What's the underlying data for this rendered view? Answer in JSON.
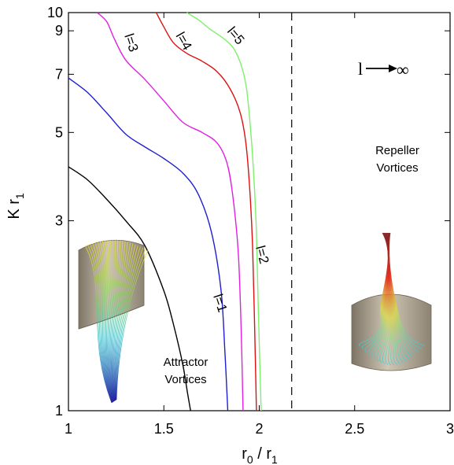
{
  "chart_data": {
    "type": "line",
    "xlabel": "r",
    "xlabel_sub_0": "0",
    "xlabel_slash": " / r",
    "xlabel_sub_1": "1",
    "ylabel": "K r",
    "ylabel_sub": "1",
    "xlim": [
      1,
      3
    ],
    "ylim": [
      1,
      10
    ],
    "y_scale": "log",
    "grid": false,
    "x_ticks": [
      1,
      1.5,
      2,
      2.5,
      3
    ],
    "x_tick_labels": [
      "1",
      "1.5",
      "2",
      "2.5",
      "3"
    ],
    "y_ticks": [
      1,
      3,
      5,
      7,
      9,
      10
    ],
    "y_tick_labels": [
      "1",
      "3",
      "5",
      "7",
      "9",
      "10"
    ],
    "series": [
      {
        "name": "l=1",
        "color": "#000000",
        "x": [
          1.0,
          1.1,
          1.2,
          1.3,
          1.4,
          1.5,
          1.55,
          1.6,
          1.625,
          1.64
        ],
        "y": [
          4.1,
          3.8,
          3.4,
          3.0,
          2.6,
          2.0,
          1.65,
          1.3,
          1.1,
          1.0
        ]
      },
      {
        "name": "l=2",
        "color": "#1f1fd0",
        "x": [
          1.0,
          1.1,
          1.2,
          1.3,
          1.4,
          1.5,
          1.6,
          1.68,
          1.75,
          1.8,
          1.82,
          1.835
        ],
        "y": [
          6.85,
          6.3,
          5.6,
          4.95,
          4.6,
          4.3,
          3.95,
          3.5,
          2.8,
          2.0,
          1.4,
          1.0
        ]
      },
      {
        "name": "l=3",
        "color": "#e020e0",
        "x": [
          1.15,
          1.2,
          1.24,
          1.3,
          1.4,
          1.5,
          1.6,
          1.7,
          1.78,
          1.83,
          1.86,
          1.89,
          1.905,
          1.915
        ],
        "y": [
          10.0,
          9.5,
          8.6,
          7.6,
          6.8,
          6.0,
          5.3,
          5.0,
          4.7,
          4.2,
          3.5,
          2.5,
          1.6,
          1.0
        ]
      },
      {
        "name": "l=4",
        "color": "#dd1111",
        "x": [
          1.46,
          1.5,
          1.55,
          1.62,
          1.7,
          1.78,
          1.85,
          1.9,
          1.93,
          1.95,
          1.965,
          1.975,
          1.985
        ],
        "y": [
          10.0,
          9.2,
          8.4,
          7.9,
          7.55,
          7.1,
          6.4,
          5.6,
          4.7,
          3.6,
          2.6,
          1.7,
          1.0
        ]
      },
      {
        "name": "l=5",
        "color": "#7ef06a",
        "x": [
          1.62,
          1.68,
          1.74,
          1.8,
          1.86,
          1.9,
          1.93,
          1.95,
          1.97,
          1.985,
          1.995,
          2.01
        ],
        "y": [
          10.0,
          9.6,
          9.1,
          8.7,
          8.2,
          7.5,
          6.6,
          5.4,
          4.0,
          2.8,
          1.8,
          1.0
        ]
      }
    ],
    "asymptote": {
      "x": 2.17,
      "label_l": "l",
      "label_inf": "∞"
    },
    "region_labels": {
      "repeller": [
        "Repeller",
        "Vortices"
      ],
      "attractor": [
        "Attractor",
        "Vortices"
      ]
    }
  }
}
